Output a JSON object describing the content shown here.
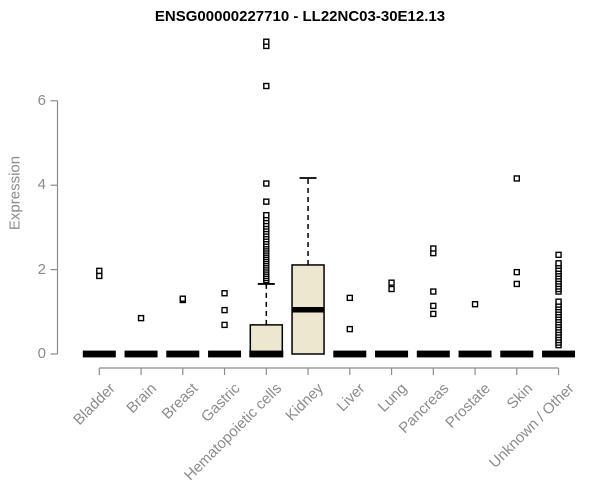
{
  "chart_data": {
    "type": "boxplot",
    "title": "ENSG00000227710 - LL22NC03-30E12.13",
    "ylabel": "Expression",
    "xlabel": "",
    "ylim": [
      0,
      7.5
    ],
    "yticks": [
      0,
      2,
      4,
      6
    ],
    "grid": false,
    "legend": false,
    "colors": {
      "box_fill": "#EDE7CF",
      "box_stroke": "#000000",
      "median": "#000000",
      "axis": "#8C8C8C",
      "label_text": "#8C8C8C",
      "title_text": "#000000",
      "outlier_fill": "#FFFFFF",
      "background": "#FFFFFF"
    },
    "categories": [
      "Bladder",
      "Brain",
      "Breast",
      "Gastric",
      "Hematopoietic cells",
      "Kidney",
      "Liver",
      "Lung",
      "Pancreas",
      "Prostate",
      "Skin",
      "Unknown / Other"
    ],
    "series": [
      {
        "category": "Bladder",
        "q1": 0,
        "median": 0,
        "q3": 0,
        "whisker_low": 0,
        "whisker_high": 0,
        "outliers": [
          1.85,
          1.97
        ]
      },
      {
        "category": "Brain",
        "q1": 0,
        "median": 0,
        "q3": 0,
        "whisker_low": 0,
        "whisker_high": 0,
        "outliers": [
          0.85
        ]
      },
      {
        "category": "Breast",
        "q1": 0,
        "median": 0,
        "q3": 0,
        "whisker_low": 0,
        "whisker_high": 0,
        "outliers": [
          1.28,
          1.31
        ]
      },
      {
        "category": "Gastric",
        "q1": 0,
        "median": 0,
        "q3": 0,
        "whisker_low": 0,
        "whisker_high": 0,
        "outliers": [
          0.69,
          1.04,
          1.44
        ]
      },
      {
        "category": "Hematopoietic cells",
        "q1": 0,
        "median": 0,
        "q3": 0.69,
        "whisker_low": 0,
        "whisker_high": 1.66,
        "outliers": [
          1.75,
          1.8,
          1.85,
          1.9,
          1.95,
          2.0,
          2.05,
          2.1,
          2.15,
          2.2,
          2.25,
          2.3,
          2.35,
          2.4,
          2.45,
          2.5,
          2.55,
          2.6,
          2.66,
          2.72,
          2.78,
          2.84,
          2.9,
          2.96,
          3.02,
          3.08,
          3.15,
          3.22,
          3.29,
          3.61,
          4.04,
          6.35,
          7.3,
          7.4
        ]
      },
      {
        "category": "Kidney",
        "q1": 0,
        "median": 1.05,
        "q3": 2.11,
        "whisker_low": 0,
        "whisker_high": 4.17,
        "outliers": []
      },
      {
        "category": "Liver",
        "q1": 0,
        "median": 0,
        "q3": 0,
        "whisker_low": 0,
        "whisker_high": 0,
        "outliers": [
          0.59,
          1.33
        ]
      },
      {
        "category": "Lung",
        "q1": 0,
        "median": 0,
        "q3": 0,
        "whisker_low": 0,
        "whisker_high": 0,
        "outliers": [
          1.54,
          1.69
        ]
      },
      {
        "category": "Pancreas",
        "q1": 0,
        "median": 0,
        "q3": 0,
        "whisker_low": 0,
        "whisker_high": 0,
        "outliers": [
          0.95,
          1.14,
          1.48,
          2.39,
          2.5
        ]
      },
      {
        "category": "Prostate",
        "q1": 0,
        "median": 0,
        "q3": 0,
        "whisker_low": 0,
        "whisker_high": 0,
        "outliers": [
          1.18
        ]
      },
      {
        "category": "Skin",
        "q1": 0,
        "median": 0,
        "q3": 0,
        "whisker_low": 0,
        "whisker_high": 0,
        "outliers": [
          1.66,
          1.94,
          4.16
        ]
      },
      {
        "category": "Unknown / Other",
        "q1": 0,
        "median": 0,
        "q3": 0,
        "whisker_low": 0,
        "whisker_high": 0,
        "outliers": [
          0.21,
          0.27,
          0.33,
          0.39,
          0.45,
          0.51,
          0.57,
          0.63,
          0.69,
          0.75,
          0.81,
          0.87,
          0.93,
          0.99,
          1.05,
          1.11,
          1.17,
          1.24,
          1.48,
          1.54,
          1.6,
          1.66,
          1.72,
          1.78,
          1.84,
          1.9,
          1.96,
          2.02,
          2.09,
          2.15,
          2.35
        ]
      }
    ]
  }
}
